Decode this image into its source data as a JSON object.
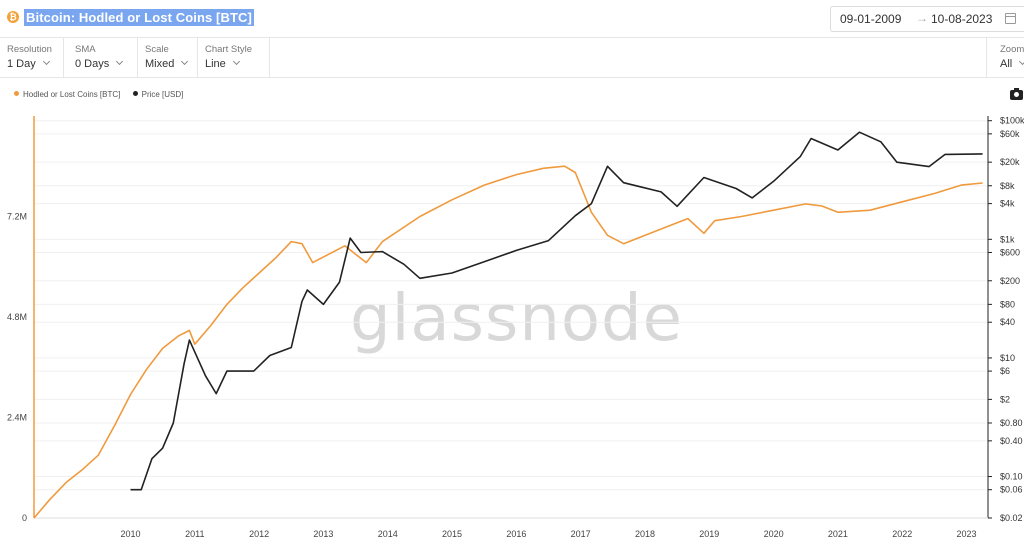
{
  "header": {
    "coin_icon": "bitcoin-icon",
    "coin_glyph": "₿",
    "title": "Bitcoin: Hodled or Lost Coins [BTC]",
    "date_from": "09-01-2009",
    "date_arrow": "→",
    "date_to": "10-08-2023"
  },
  "controls": [
    {
      "label": "Resolution",
      "value": "1 Day"
    },
    {
      "label": "SMA",
      "value": "0 Days"
    },
    {
      "label": "Scale",
      "value": "Mixed"
    },
    {
      "label": "Chart Style",
      "value": "Line"
    }
  ],
  "zoom": {
    "label": "Zoom",
    "value": "All"
  },
  "watermark": "glassnode",
  "colors": {
    "hodled": "#f09a3e",
    "price": "#222222",
    "accent": "#f2a33a"
  },
  "chart_data": {
    "type": "line",
    "legend_position": "top-left",
    "grid": true,
    "series": [
      {
        "name": "Hodled or Lost Coins [BTC]",
        "axis": "left",
        "points": [
          [
            "2009-01",
            0.0
          ],
          [
            "2009-04",
            0.45
          ],
          [
            "2009-07",
            0.85
          ],
          [
            "2009-10",
            1.15
          ],
          [
            "2010-01",
            1.5
          ],
          [
            "2010-04",
            2.2
          ],
          [
            "2010-07",
            2.95
          ],
          [
            "2010-10",
            3.55
          ],
          [
            "2011-01",
            4.05
          ],
          [
            "2011-04",
            4.35
          ],
          [
            "2011-06",
            4.48
          ],
          [
            "2011-07",
            4.15
          ],
          [
            "2011-10",
            4.6
          ],
          [
            "2012-01",
            5.1
          ],
          [
            "2012-04",
            5.5
          ],
          [
            "2012-07",
            5.85
          ],
          [
            "2012-10",
            6.2
          ],
          [
            "2013-01",
            6.6
          ],
          [
            "2013-03",
            6.55
          ],
          [
            "2013-05",
            6.1
          ],
          [
            "2013-08",
            6.3
          ],
          [
            "2013-11",
            6.5
          ],
          [
            "2014-01",
            6.3
          ],
          [
            "2014-03",
            6.1
          ],
          [
            "2014-06",
            6.6
          ],
          [
            "2015-01",
            7.2
          ],
          [
            "2015-07",
            7.6
          ],
          [
            "2016-01",
            7.95
          ],
          [
            "2016-07",
            8.2
          ],
          [
            "2016-12",
            8.35
          ],
          [
            "2017-04",
            8.4
          ],
          [
            "2017-06",
            8.25
          ],
          [
            "2017-09",
            7.3
          ],
          [
            "2017-12",
            6.75
          ],
          [
            "2018-03",
            6.55
          ],
          [
            "2018-08",
            6.8
          ],
          [
            "2019-01",
            7.05
          ],
          [
            "2019-03",
            7.15
          ],
          [
            "2019-06",
            6.8
          ],
          [
            "2019-08",
            7.1
          ],
          [
            "2020-01",
            7.2
          ],
          [
            "2020-07",
            7.35
          ],
          [
            "2021-01",
            7.5
          ],
          [
            "2021-04",
            7.45
          ],
          [
            "2021-07",
            7.3
          ],
          [
            "2022-01",
            7.35
          ],
          [
            "2022-07",
            7.55
          ],
          [
            "2023-01",
            7.75
          ],
          [
            "2023-06",
            7.95
          ],
          [
            "2023-10",
            8.0
          ]
        ]
      },
      {
        "name": "Price [USD]",
        "axis": "right",
        "points": [
          [
            "2010-07",
            0.06
          ],
          [
            "2010-09",
            0.06
          ],
          [
            "2010-11",
            0.2
          ],
          [
            "2011-01",
            0.3
          ],
          [
            "2011-03",
            0.8
          ],
          [
            "2011-05",
            8
          ],
          [
            "2011-06",
            20
          ],
          [
            "2011-09",
            5
          ],
          [
            "2011-11",
            2.5
          ],
          [
            "2012-01",
            6
          ],
          [
            "2012-06",
            6
          ],
          [
            "2012-09",
            11
          ],
          [
            "2013-01",
            15
          ],
          [
            "2013-03",
            90
          ],
          [
            "2013-04",
            140
          ],
          [
            "2013-07",
            80
          ],
          [
            "2013-10",
            190
          ],
          [
            "2013-12",
            1050
          ],
          [
            "2014-02",
            600
          ],
          [
            "2014-06",
            620
          ],
          [
            "2014-10",
            380
          ],
          [
            "2015-01",
            220
          ],
          [
            "2015-07",
            270
          ],
          [
            "2016-01",
            420
          ],
          [
            "2016-07",
            650
          ],
          [
            "2017-01",
            950
          ],
          [
            "2017-06",
            2500
          ],
          [
            "2017-09",
            4000
          ],
          [
            "2017-12",
            17000
          ],
          [
            "2018-03",
            9000
          ],
          [
            "2018-10",
            6300
          ],
          [
            "2019-01",
            3600
          ],
          [
            "2019-06",
            11000
          ],
          [
            "2019-12",
            7200
          ],
          [
            "2020-03",
            5000
          ],
          [
            "2020-07",
            9500
          ],
          [
            "2020-12",
            25000
          ],
          [
            "2021-02",
            50000
          ],
          [
            "2021-07",
            32000
          ],
          [
            "2021-11",
            64000
          ],
          [
            "2022-03",
            44000
          ],
          [
            "2022-06",
            20000
          ],
          [
            "2022-12",
            16800
          ],
          [
            "2023-03",
            27000
          ],
          [
            "2023-10",
            27500
          ]
        ]
      }
    ],
    "x_range": [
      "2009-01",
      "2023-10"
    ],
    "x_ticks": [
      "2010",
      "2011",
      "2012",
      "2013",
      "2014",
      "2015",
      "2016",
      "2017",
      "2018",
      "2019",
      "2020",
      "2021",
      "2022",
      "2023"
    ],
    "y_left": {
      "min": 0,
      "max": 9.6,
      "ticks": [
        {
          "v": 0,
          "label": "0"
        },
        {
          "v": 2.4,
          "label": "2.4M"
        },
        {
          "v": 4.8,
          "label": "4.8M"
        },
        {
          "v": 7.2,
          "label": "7.2M"
        }
      ]
    },
    "y_right": {
      "scale": "log",
      "min": 0.02,
      "max": 120000,
      "ticks": [
        {
          "v": 100000,
          "label": "$100k"
        },
        {
          "v": 60000,
          "label": "$60k"
        },
        {
          "v": 20000,
          "label": "$20k"
        },
        {
          "v": 8000,
          "label": "$8k"
        },
        {
          "v": 4000,
          "label": "$4k"
        },
        {
          "v": 1000,
          "label": "$1k"
        },
        {
          "v": 600,
          "label": "$600"
        },
        {
          "v": 200,
          "label": "$200"
        },
        {
          "v": 80,
          "label": "$80"
        },
        {
          "v": 40,
          "label": "$40"
        },
        {
          "v": 10,
          "label": "$10"
        },
        {
          "v": 6,
          "label": "$6"
        },
        {
          "v": 2,
          "label": "$2"
        },
        {
          "v": 0.8,
          "label": "$0.80"
        },
        {
          "v": 0.4,
          "label": "$0.40"
        },
        {
          "v": 0.1,
          "label": "$0.10"
        },
        {
          "v": 0.06,
          "label": "$0.06"
        },
        {
          "v": 0.02,
          "label": "$0.02"
        }
      ]
    }
  }
}
